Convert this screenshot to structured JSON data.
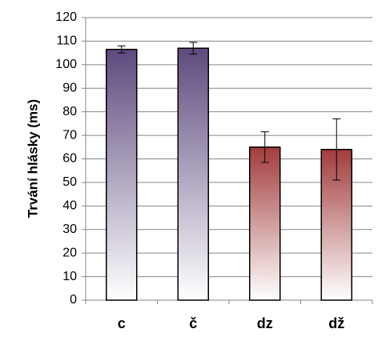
{
  "chart_data": {
    "type": "bar",
    "ylabel": "Trvání hlásky (ms)",
    "categories": [
      "c",
      "č",
      "dz",
      "dž"
    ],
    "values": [
      106.5,
      107,
      65,
      64
    ],
    "errors": [
      1.5,
      2.5,
      6.5,
      13
    ],
    "colors": [
      "#5e4a7e",
      "#5e4a7e",
      "#a23c3c",
      "#a23c3c"
    ],
    "ylim": [
      0,
      120
    ],
    "yticks": [
      0,
      10,
      20,
      30,
      40,
      50,
      60,
      70,
      80,
      90,
      100,
      110,
      120
    ],
    "grid": true
  }
}
